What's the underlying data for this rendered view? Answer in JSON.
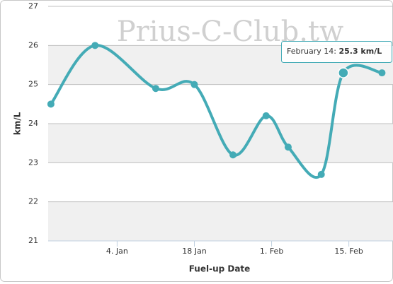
{
  "chart_data": {
    "type": "line",
    "watermark": "Prius-C-Club.tw",
    "x_label": "Fuel-up Date",
    "y_label": "km/L",
    "x": [
      -8,
      0,
      11,
      18,
      25,
      31,
      35,
      41,
      45,
      52
    ],
    "values": [
      24.5,
      26.0,
      24.9,
      25.0,
      23.2,
      24.2,
      23.4,
      22.7,
      25.3,
      25.3
    ],
    "color": "#44abb6",
    "xlim": [
      -8.5,
      54
    ],
    "xticks": [
      {
        "value": 4,
        "label": "4. Jan"
      },
      {
        "value": 18,
        "label": "18 Jan"
      },
      {
        "value": 32,
        "label": "1. Feb"
      },
      {
        "value": 46,
        "label": "15. Feb"
      }
    ],
    "ylim": [
      21,
      27
    ],
    "yticks": [
      21,
      22,
      23,
      24,
      25,
      26,
      27
    ],
    "grid": true,
    "tooltip": {
      "date": "February 14",
      "value_label": "25.3 km/L"
    }
  }
}
